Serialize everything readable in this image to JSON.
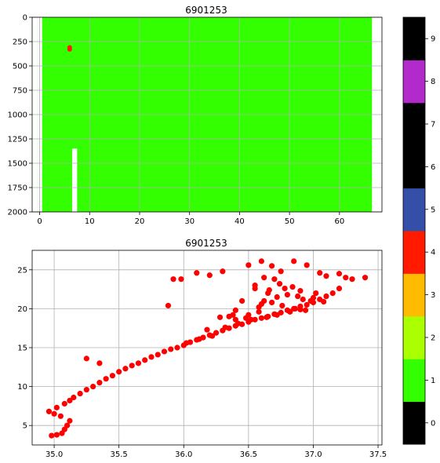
{
  "chart_data": [
    {
      "type": "heatmap",
      "title": "6901253",
      "xlabel": "",
      "ylabel": "",
      "xlim": [
        -1.5,
        68.5
      ],
      "ylim": [
        2000,
        0
      ],
      "y_inverted": true,
      "xticks": [
        0,
        10,
        20,
        30,
        40,
        50,
        60
      ],
      "yticks": [
        0,
        250,
        500,
        750,
        1000,
        1250,
        1500,
        1750,
        2000
      ],
      "grid": true,
      "profile_range": [
        0,
        66
      ],
      "fill_class": 1,
      "fill_color": "#33ff00",
      "gaps": [
        {
          "profile": 0,
          "from": 0,
          "to": 2000
        },
        {
          "profile": 7,
          "from": 1350,
          "to": 2000
        }
      ],
      "bad_points": [
        {
          "profile": 6,
          "depth": 310,
          "class": 4
        },
        {
          "profile": 6,
          "depth": 330,
          "class": 4
        }
      ]
    },
    {
      "type": "scatter",
      "title": "6901253",
      "xlabel": "",
      "ylabel": "",
      "xlim": [
        34.83,
        37.53
      ],
      "ylim": [
        2.5,
        27.5
      ],
      "xticks": [
        35.0,
        35.5,
        36.0,
        36.5,
        37.0,
        37.5
      ],
      "yticks": [
        5,
        10,
        15,
        20,
        25
      ],
      "grid": true,
      "color": "#ff0000",
      "x": [
        34.98,
        35.02,
        35.06,
        35.08,
        35.1,
        35.12,
        35.05,
        35.0,
        34.96,
        35.02,
        35.08,
        35.12,
        35.15,
        35.2,
        35.25,
        35.3,
        35.35,
        35.4,
        35.45,
        35.5,
        35.55,
        35.6,
        35.65,
        35.7,
        35.75,
        35.8,
        35.85,
        35.9,
        35.95,
        36.0,
        36.05,
        36.1,
        36.15,
        36.2,
        36.25,
        36.3,
        36.35,
        36.4,
        36.45,
        36.5,
        36.55,
        36.6,
        36.65,
        36.7,
        36.75,
        36.8,
        36.85,
        36.9,
        36.95,
        37.0,
        37.05,
        37.1,
        37.15,
        37.2,
        37.3,
        37.4,
        35.25,
        35.35,
        35.92,
        35.98,
        35.88,
        36.1,
        36.2,
        36.3,
        36.5,
        36.6,
        36.62,
        36.68,
        36.75,
        36.85,
        36.95,
        37.05,
        37.1,
        37.2,
        37.25,
        36.55,
        36.65,
        36.72,
        36.8,
        36.9,
        36.45,
        36.4,
        36.35,
        36.55,
        36.7,
        36.58,
        36.62,
        36.78,
        36.88,
        36.98,
        37.02,
        36.5,
        36.6,
        36.66,
        36.74,
        36.84,
        36.92,
        36.48,
        36.58,
        36.68,
        36.76,
        36.86,
        36.94,
        37.0,
        37.08,
        36.52,
        36.64,
        36.72,
        36.82,
        36.9,
        36.02,
        36.12,
        36.22,
        36.18,
        36.32,
        36.42,
        36.28,
        36.4,
        36.38
      ],
      "y": [
        3.7,
        3.8,
        4.0,
        4.5,
        5.0,
        5.6,
        6.2,
        6.5,
        6.8,
        7.3,
        7.8,
        8.2,
        8.6,
        9.1,
        9.6,
        10.0,
        10.5,
        11.0,
        11.4,
        11.9,
        12.3,
        12.7,
        13.0,
        13.4,
        13.8,
        14.1,
        14.5,
        14.8,
        15.0,
        15.3,
        15.7,
        16.0,
        16.3,
        16.6,
        16.9,
        17.2,
        17.5,
        17.8,
        18.0,
        18.3,
        18.6,
        18.8,
        19.0,
        19.3,
        19.5,
        19.8,
        20.0,
        20.3,
        20.5,
        20.8,
        21.2,
        21.6,
        22.0,
        22.6,
        23.8,
        24.0,
        13.6,
        13.0,
        23.8,
        23.8,
        20.4,
        24.6,
        24.3,
        24.8,
        25.6,
        26.1,
        24.0,
        25.5,
        24.8,
        26.1,
        25.6,
        24.6,
        24.2,
        24.5,
        24.0,
        22.6,
        22.0,
        21.5,
        21.8,
        22.3,
        21.0,
        19.8,
        19.0,
        23.0,
        23.8,
        20.2,
        21.0,
        22.6,
        21.6,
        21.0,
        22.0,
        19.2,
        20.6,
        22.4,
        23.2,
        22.8,
        21.2,
        18.8,
        19.6,
        20.8,
        20.4,
        20.0,
        19.8,
        21.4,
        20.9,
        18.6,
        18.9,
        19.2,
        19.6,
        19.9,
        15.6,
        16.1,
        16.5,
        17.3,
        17.6,
        18.1,
        18.9,
        18.6,
        19.2
      ]
    },
    {
      "type": "heatmap",
      "role": "colorbar",
      "ticks": [
        0,
        1,
        2,
        3,
        4,
        5,
        6,
        7,
        8,
        9
      ],
      "colors": [
        "#000000",
        "#33ff00",
        "#aaff00",
        "#ffbb00",
        "#ff1a00",
        "#334fa8",
        "#000000",
        "#000000",
        "#b32acc",
        "#000000"
      ]
    }
  ]
}
